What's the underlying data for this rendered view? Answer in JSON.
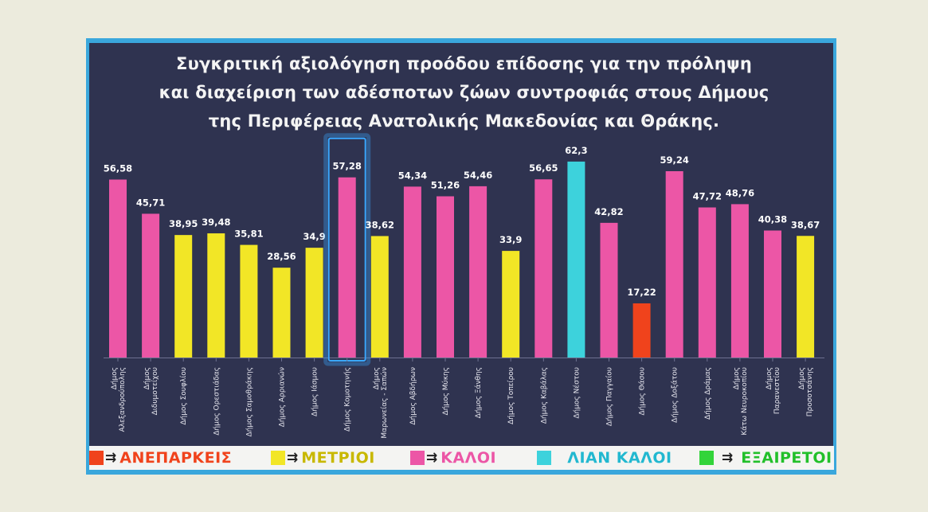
{
  "title_lines": [
    "Συγκριτική αξιολόγηση προόδου επίδοσης για την πρόληψη",
    "και διαχείριση των αδέσποτων ζώων συντροφιάς στους Δήμους",
    "της Περιφέρειας Ανατολικής Μακεδονίας και Θράκης."
  ],
  "colors": {
    "ΑΝΕΠΑΡΚΕΙΣ": "#f0431c",
    "ΜΕΤΡΙΟΙ": "#f2e626",
    "ΚΑΛΟΙ": "#ec56a6",
    "ΛΙΑΝ ΚΑΛΟΙ": "#3dd2dc",
    "ΕΞΑΙΡΕΤΟΙ": "#33d43a",
    "highlight": "#3aa7ff"
  },
  "legend": [
    {
      "label": "ΑΝΕΠΑΡΚΕΙΣ",
      "arrow": "⇉",
      "color": "#f0431c",
      "text_color": "#f0431c"
    },
    {
      "label": "ΜΕΤΡΙΟΙ",
      "arrow": "⇉",
      "color": "#f2e626",
      "text_color": "#c8b800"
    },
    {
      "label": "ΚΑΛΟΙ",
      "arrow": "⇉",
      "color": "#ec56a6",
      "text_color": "#ec56a6"
    },
    {
      "label": "ΛΙΑΝ ΚΑΛΟΙ",
      "arrow": "⇉",
      "color": "#3dd2dc",
      "text_color": "#22b8d0"
    },
    {
      "label": "ΕΞΑΙΡΕΤΟΙ",
      "arrow": "⇉",
      "color": "#33d43a",
      "text_color": "#22c02a"
    }
  ],
  "chart_data": {
    "type": "bar",
    "categories": [
      "Δήμος Αλεξανδρούπολης",
      "Δήμος Διδυμοτείχου",
      "Δήμος Σουφλίου",
      "Δήμος Ορεστιάδας",
      "Δήμος Σαμοθράκης",
      "Δήμος Αρριανών",
      "Δήμος Ιάσμου",
      "Δήμος Κομοτηνής",
      "Δήμος Μαρωνείας - Σαπών",
      "Δήμος Αβδήρων",
      "Δήμος Μύκης",
      "Δήμος Ξάνθης",
      "Δήμος Τοπείρου",
      "Δήμος Καβάλας",
      "Δήμος Νέστου",
      "Δήμος Παγγαίου",
      "Δήμος Θάσου",
      "Δήμος Δοξάτου",
      "Δήμος Δράμας",
      "Δήμος Κάτω Νευροκοπίου",
      "Δήμος Παρανεστίου",
      "Δήμος Προσοτσάνης"
    ],
    "values": [
      56.58,
      45.71,
      38.95,
      39.48,
      35.81,
      28.56,
      34.9,
      57.28,
      38.62,
      54.34,
      51.26,
      54.46,
      33.9,
      56.65,
      62.3,
      42.82,
      17.22,
      59.24,
      47.72,
      48.76,
      40.38,
      38.67
    ],
    "value_labels": [
      "56,58",
      "45,71",
      "38,95",
      "39,48",
      "35,81",
      "28,56",
      "34,9",
      "57,28",
      "38,62",
      "54,34",
      "51,26",
      "54,46",
      "33,9",
      "56,65",
      "62,3",
      "42,82",
      "17,22",
      "59,24",
      "47,72",
      "48,76",
      "40,38",
      "38,67"
    ],
    "bar_categories": [
      "ΚΑΛΟΙ",
      "ΚΑΛΟΙ",
      "ΜΕΤΡΙΟΙ",
      "ΜΕΤΡΙΟΙ",
      "ΜΕΤΡΙΟΙ",
      "ΜΕΤΡΙΟΙ",
      "ΜΕΤΡΙΟΙ",
      "ΚΑΛΟΙ",
      "ΜΕΤΡΙΟΙ",
      "ΚΑΛΟΙ",
      "ΚΑΛΟΙ",
      "ΚΑΛΟΙ",
      "ΜΕΤΡΙΟΙ",
      "ΚΑΛΟΙ",
      "ΛΙΑΝ ΚΑΛΟΙ",
      "ΚΑΛΟΙ",
      "ΑΝΕΠΑΡΚΕΙΣ",
      "ΚΑΛΟΙ",
      "ΚΑΛΟΙ",
      "ΚΑΛΟΙ",
      "ΚΑΛΟΙ",
      "ΜΕΤΡΙΟΙ"
    ],
    "highlighted": "Δήμος Κομοτηνής",
    "ylim": [
      0,
      62.3
    ],
    "grid": false,
    "legend_position": "bottom"
  }
}
